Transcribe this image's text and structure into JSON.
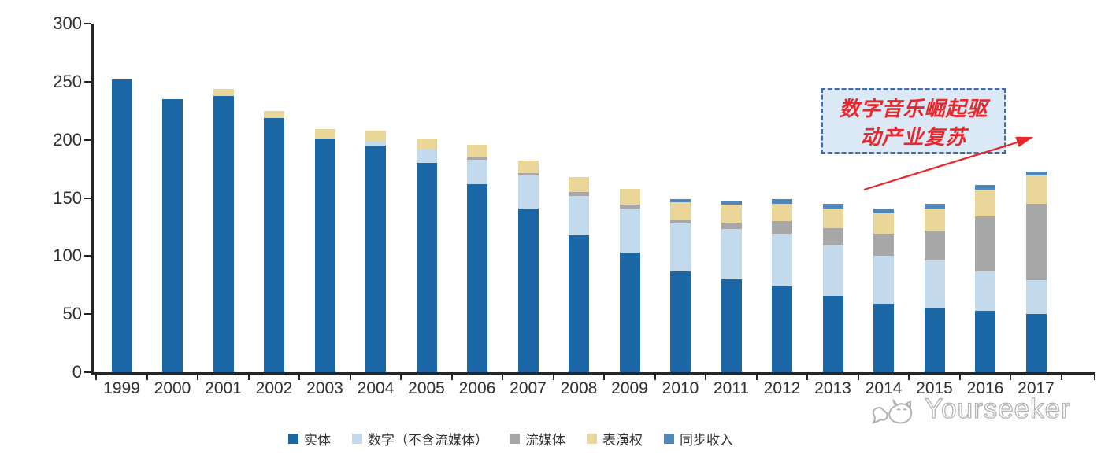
{
  "chart_data": {
    "type": "bar",
    "stacked": true,
    "title": "",
    "xlabel": "",
    "ylabel": "",
    "categories": [
      "1999",
      "2000",
      "2001",
      "2002",
      "2003",
      "2004",
      "2005",
      "2006",
      "2007",
      "2008",
      "2009",
      "2010",
      "2011",
      "2012",
      "2013",
      "2014",
      "2015",
      "2016",
      "2017"
    ],
    "series": [
      {
        "name": "实体",
        "color": "#1b67a6",
        "values": [
          252,
          235,
          238,
          219,
          201,
          195,
          180,
          162,
          141,
          118,
          103,
          87,
          80,
          74,
          66,
          59,
          55,
          53,
          50
        ]
      },
      {
        "name": "数字（不含流媒体）",
        "color": "#c3d9ec",
        "values": [
          0,
          0,
          0,
          0,
          0,
          4,
          12,
          21,
          28,
          34,
          38,
          41,
          43,
          45,
          44,
          41,
          41,
          34,
          29
        ]
      },
      {
        "name": "流媒体",
        "color": "#a7a7a7",
        "values": [
          0,
          0,
          0,
          0,
          0,
          0,
          0,
          2,
          2,
          3,
          3,
          3,
          6,
          11,
          14,
          19,
          26,
          47,
          66
        ]
      },
      {
        "name": "表演权",
        "color": "#ebd69a",
        "values": [
          0,
          0,
          6,
          6,
          8,
          9,
          9,
          11,
          11,
          13,
          14,
          15,
          15,
          15,
          17,
          18,
          19,
          23,
          24
        ]
      },
      {
        "name": "同步收入",
        "color": "#4e87bb",
        "values": [
          0,
          0,
          0,
          0,
          0,
          0,
          0,
          0,
          0,
          0,
          0,
          3,
          3,
          4,
          4,
          4,
          4,
          4,
          4
        ]
      }
    ],
    "ylim": [
      0,
      300
    ],
    "ytick_step": 50,
    "ytick_labels": [
      "0",
      "50",
      "100",
      "150",
      "200",
      "250",
      "300"
    ],
    "legend_position": "bottom",
    "grid": false
  },
  "annotation": {
    "line1": "数字音乐崛起驱",
    "line2": "动产业复苏",
    "text_color": "#e8272d",
    "box_fill": "#dbe8f5",
    "box_border_color": "#4a6aa0",
    "arrow_color": "#e8272d"
  },
  "watermark": {
    "text": "Yourseeker"
  },
  "colors": {
    "axis": "#262626",
    "tick_text": "#2e2e2e",
    "background": "#ffffff"
  }
}
